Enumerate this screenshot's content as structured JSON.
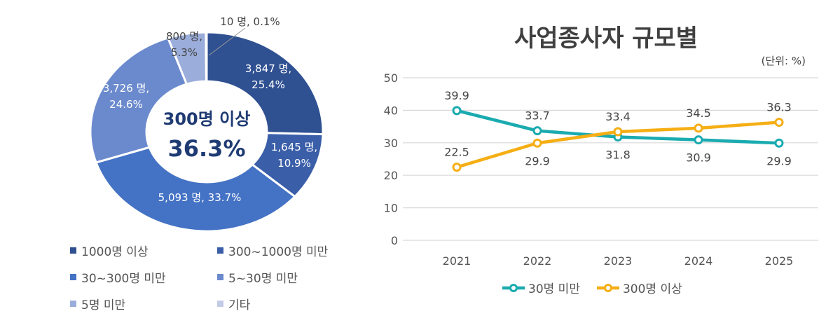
{
  "chart_data": [
    {
      "type": "pie",
      "donut": true,
      "center_label": {
        "line1": "300명 이상",
        "line2": "36.3%"
      },
      "slices": [
        {
          "name": "1000명 이상",
          "count": 3847,
          "percent": 25.4,
          "label": "3,847 명,\n25.4%",
          "color": "#2f5091"
        },
        {
          "name": "300~1000명 미만",
          "count": 1645,
          "percent": 10.9,
          "label": "1,645 명,\n10.9%",
          "color": "#3a5ea8"
        },
        {
          "name": "30~300명 미만",
          "count": 5093,
          "percent": 33.7,
          "label": "5,093 명, 33.7%",
          "color": "#4472c4"
        },
        {
          "name": "5~30명 미만",
          "count": 3726,
          "percent": 24.6,
          "label": "3,726 명,\n24.6%",
          "color": "#6b8ace"
        },
        {
          "name": "5명 미만",
          "count": 800,
          "percent": 5.3,
          "label": "800 명,\n5.3%",
          "color": "#9badda"
        },
        {
          "name": "기타",
          "count": 10,
          "percent": 0.1,
          "label": "10 명, 0.1%",
          "color": "#c3cbe7"
        }
      ],
      "legend_placement": "bottom"
    },
    {
      "type": "line",
      "title": "사업종사자 규모별",
      "unit_note": "(단위: %)",
      "categories": [
        "2021",
        "2022",
        "2023",
        "2024",
        "2025"
      ],
      "ylim": [
        0,
        50
      ],
      "yticks": [
        0,
        10,
        20,
        30,
        40,
        50
      ],
      "grid": true,
      "legend_placement": "bottom",
      "series": [
        {
          "name": "30명 미만",
          "values": [
            39.9,
            33.7,
            31.8,
            30.9,
            29.9
          ],
          "color": "#1aabb0"
        },
        {
          "name": "300명 이상",
          "values": [
            22.5,
            29.9,
            33.4,
            34.5,
            36.3
          ],
          "color": "#f5ae14"
        }
      ]
    }
  ]
}
